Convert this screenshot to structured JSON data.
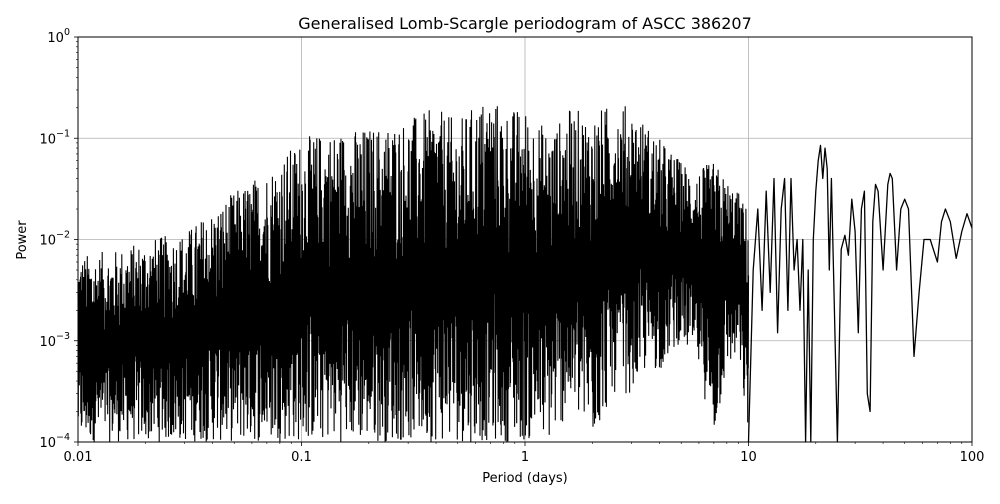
{
  "chart_data": {
    "type": "line",
    "title": "Generalised Lomb-Scargle periodogram of ASCC 386207",
    "xlabel": "Period (days)",
    "ylabel": "Power",
    "xscale": "log",
    "yscale": "log",
    "xlim": [
      0.01,
      100
    ],
    "ylim": [
      0.0001,
      1
    ],
    "grid": true,
    "line_color": "#000000",
    "x_ticks": [
      {
        "value": 0.01,
        "label": "0.01"
      },
      {
        "value": 0.1,
        "label": "0.1"
      },
      {
        "value": 1,
        "label": "1"
      },
      {
        "value": 10,
        "label": "10"
      },
      {
        "value": 100,
        "label": "100"
      }
    ],
    "y_ticks": [
      {
        "value": 0.0001,
        "base": "10",
        "exp": "−4"
      },
      {
        "value": 0.001,
        "base": "10",
        "exp": "−3"
      },
      {
        "value": 0.01,
        "base": "10",
        "exp": "−2"
      },
      {
        "value": 0.1,
        "base": "10",
        "exp": "−1"
      },
      {
        "value": 1,
        "base": "10",
        "exp": "0"
      }
    ],
    "envelope": {
      "period": [
        0.01,
        0.015,
        0.02,
        0.03,
        0.04,
        0.05,
        0.07,
        0.1,
        0.13,
        0.2,
        0.3,
        0.4,
        0.5,
        0.6,
        0.7,
        0.8,
        1.0,
        1.3,
        1.6,
        2.0,
        2.5,
        3.0,
        3.5,
        4.0,
        5.0,
        6.0,
        7.0,
        8.0,
        9.0,
        10.0
      ],
      "upper_power": [
        0.007,
        0.008,
        0.01,
        0.012,
        0.02,
        0.03,
        0.05,
        0.1,
        0.12,
        0.13,
        0.16,
        0.2,
        0.15,
        0.22,
        0.28,
        0.2,
        0.2,
        0.12,
        0.2,
        0.18,
        0.23,
        0.21,
        0.14,
        0.1,
        0.06,
        0.05,
        0.06,
        0.04,
        0.03,
        0.02
      ],
      "lower_power": [
        0.0001,
        0.0001,
        0.0001,
        0.0001,
        0.0001,
        0.0001,
        0.0001,
        0.0001,
        0.0001,
        0.0001,
        0.0001,
        0.0001,
        0.0001,
        0.0001,
        0.0001,
        0.0001,
        0.0001,
        0.0001,
        0.0002,
        0.0001,
        0.0003,
        0.0003,
        0.0005,
        0.0005,
        0.001,
        0.0005,
        0.0001,
        0.0005,
        0.0007,
        0.0001
      ]
    },
    "series": [
      {
        "period": [
          10.0,
          10.5,
          11.0,
          11.5,
          12.0,
          12.5,
          13.0,
          13.5,
          14.0,
          14.5,
          15.0,
          15.5,
          16.0,
          16.5,
          17.0,
          17.5,
          18.0,
          18.5,
          19.0,
          19.5,
          20.0,
          20.5,
          21.0,
          21.5,
          22.0,
          22.5,
          23.0,
          23.5,
          24.0,
          25.0,
          26.0,
          27.0,
          28.0,
          29.0,
          30.0,
          31.0,
          32.0,
          33.0,
          34.0,
          35.0,
          36.0,
          37.0,
          38.0,
          40.0,
          42.0,
          43.0,
          44.0,
          46.0,
          48.0,
          50.0,
          52.0,
          55.0,
          58.0,
          61.0,
          65.0,
          70.0,
          73.0,
          76.0,
          80.0,
          85.0,
          90.0,
          95.0,
          100.0
        ],
        "power": [
          0.0001,
          0.005,
          0.02,
          0.002,
          0.03,
          0.003,
          0.04,
          0.0012,
          0.02,
          0.04,
          0.002,
          0.04,
          0.005,
          0.01,
          0.002,
          0.01,
          0.0001,
          0.005,
          0.0001,
          0.01,
          0.03,
          0.06,
          0.085,
          0.04,
          0.08,
          0.05,
          0.005,
          0.04,
          0.005,
          0.0001,
          0.008,
          0.011,
          0.007,
          0.025,
          0.012,
          0.0012,
          0.02,
          0.03,
          0.0003,
          0.0002,
          0.015,
          0.035,
          0.03,
          0.005,
          0.035,
          0.045,
          0.04,
          0.005,
          0.02,
          0.025,
          0.02,
          0.0007,
          0.003,
          0.01,
          0.01,
          0.006,
          0.015,
          0.02,
          0.015,
          0.0065,
          0.012,
          0.018,
          0.013
        ]
      }
    ]
  }
}
